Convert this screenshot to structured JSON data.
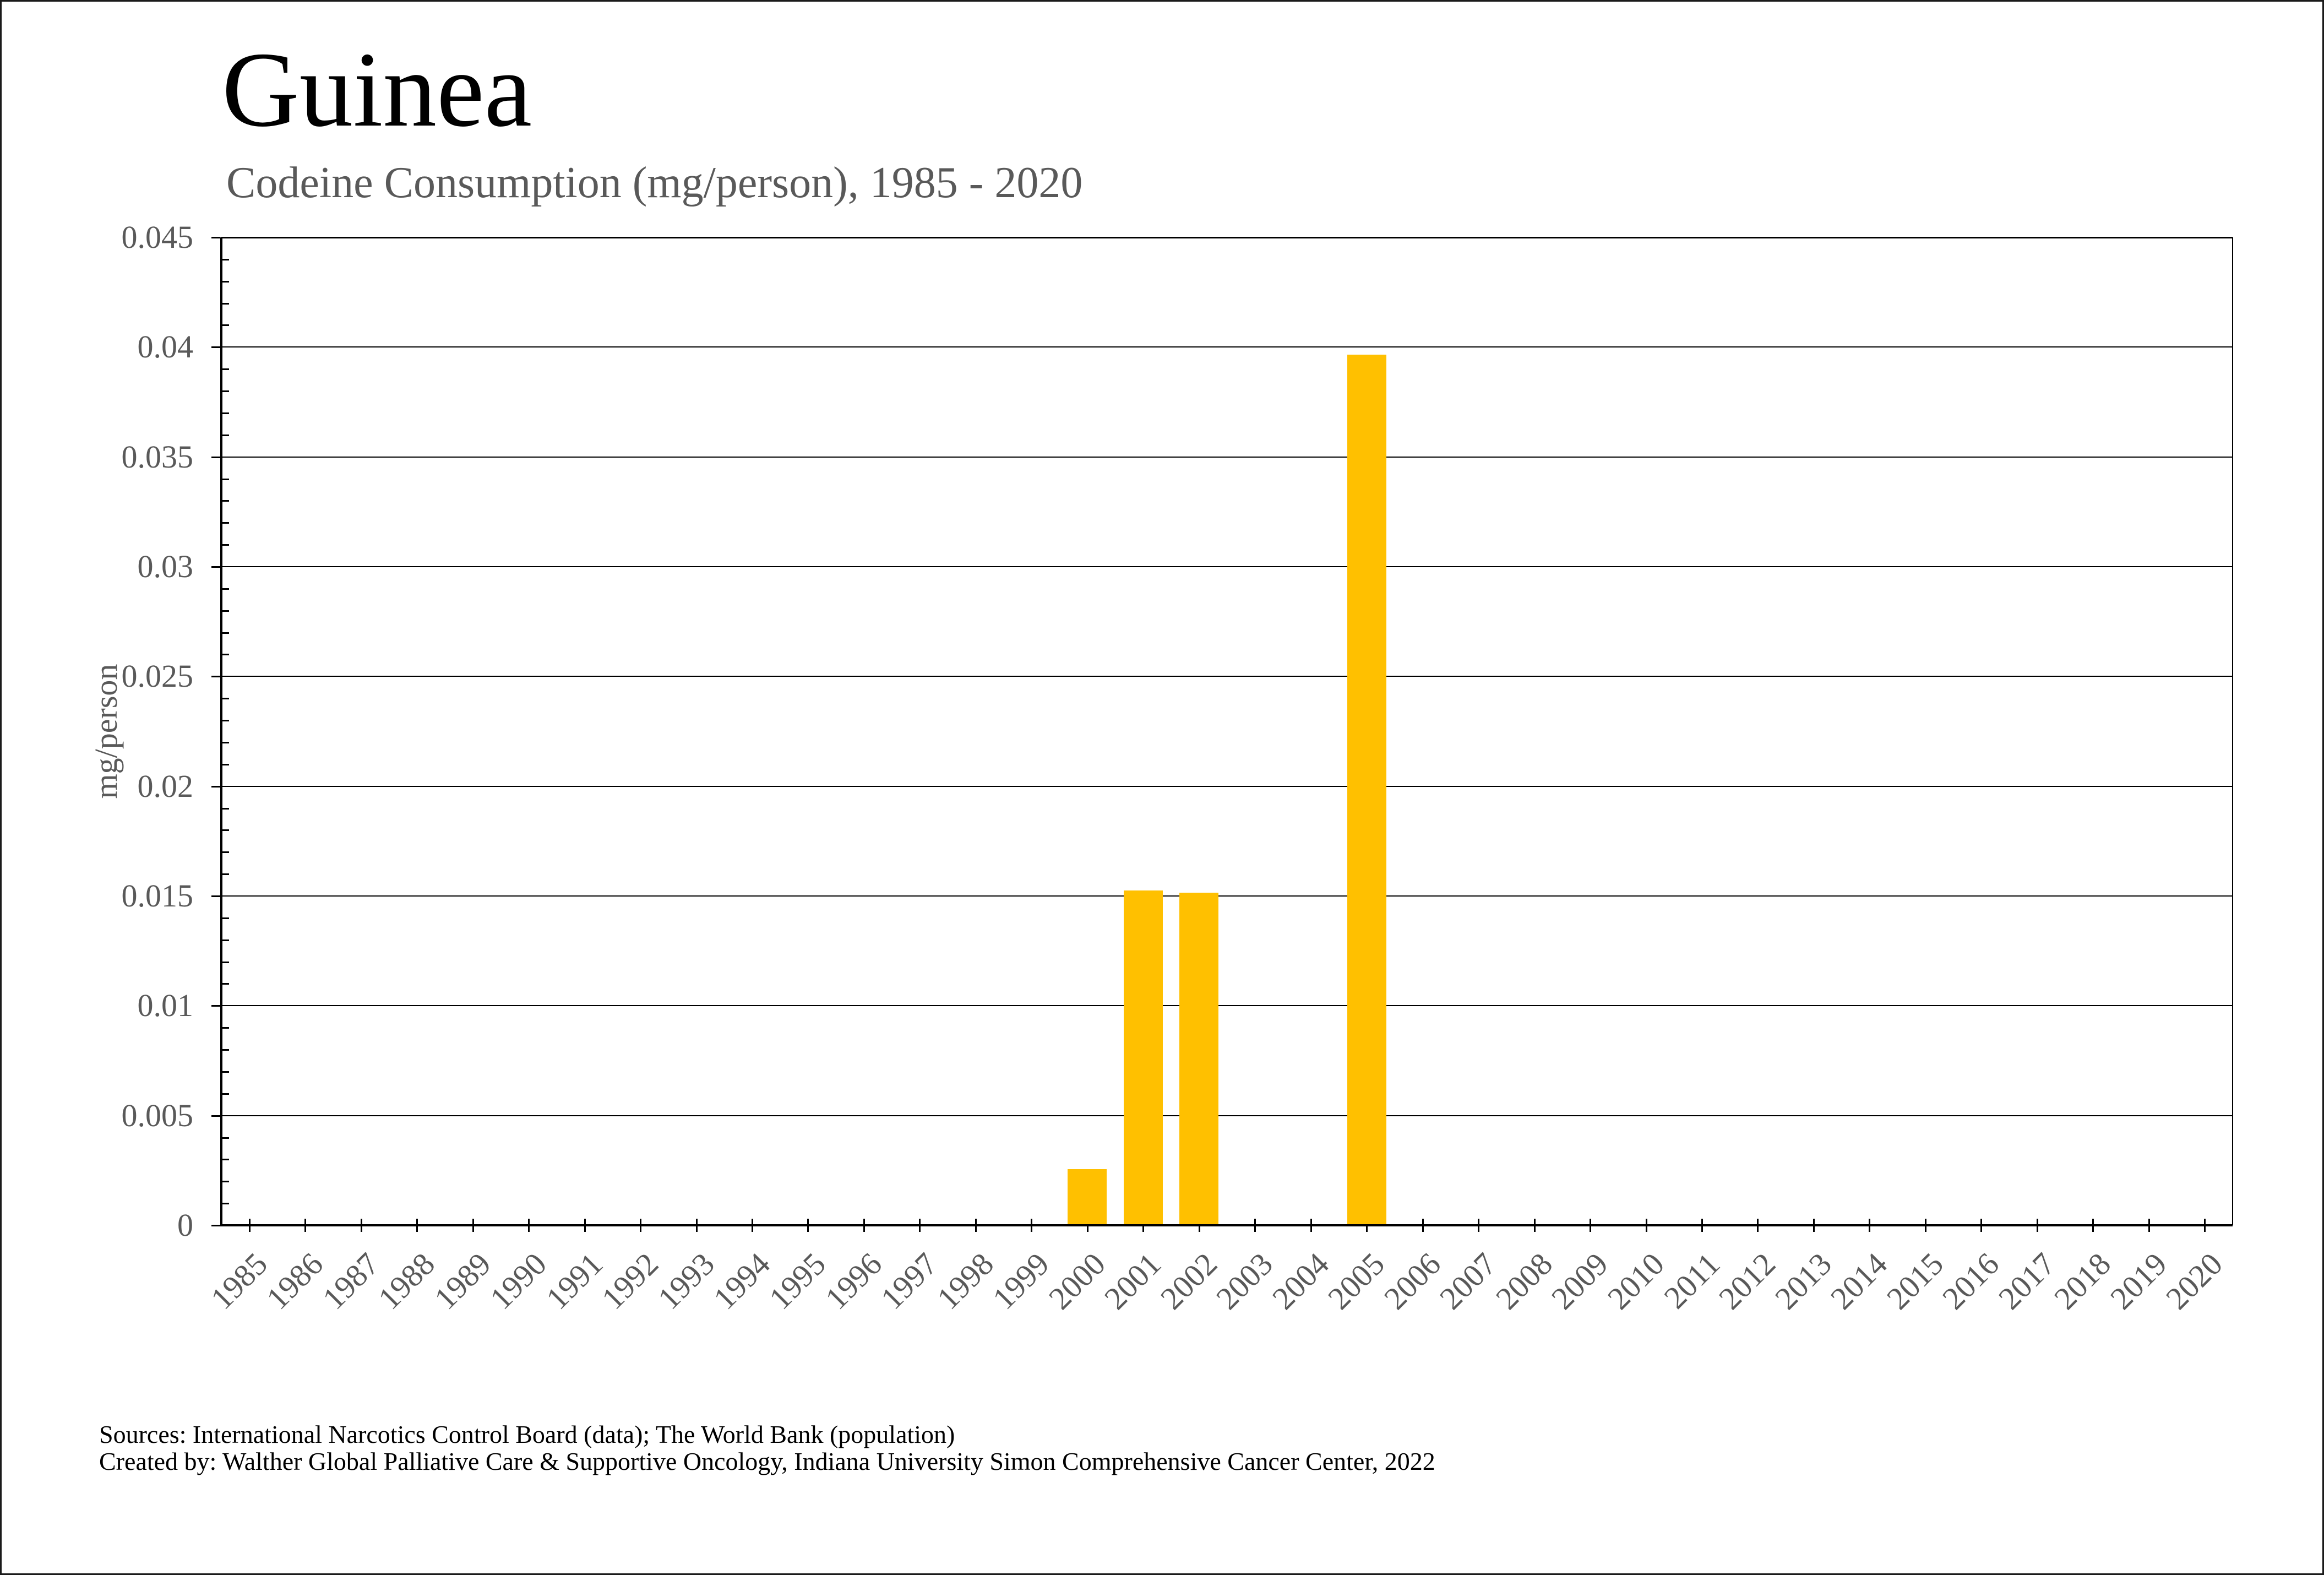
{
  "page": {
    "background": "#ffffff",
    "border_color": "#1a1a1a"
  },
  "header": {
    "title": "Guinea",
    "subtitle": "Codeine Consumption (mg/person), 1985 - 2020"
  },
  "footer": {
    "source_line1": "Sources: International Narcotics Control Board (data); The World Bank (population)",
    "source_line2": "Created by: Walther Global Palliative Care & Supportive Oncology, Indiana University Simon Comprehensive Cancer Center, 2022"
  },
  "chart_data": {
    "type": "bar",
    "title": "Guinea",
    "subtitle": "Codeine Consumption (mg/person), 1985 - 2020",
    "xlabel": "",
    "ylabel": "mg/person",
    "categories": [
      1985,
      1986,
      1987,
      1988,
      1989,
      1990,
      1991,
      1992,
      1993,
      1994,
      1995,
      1996,
      1997,
      1998,
      1999,
      2000,
      2001,
      2002,
      2003,
      2004,
      2005,
      2006,
      2007,
      2008,
      2009,
      2010,
      2011,
      2012,
      2013,
      2014,
      2015,
      2016,
      2017,
      2018,
      2019,
      2020
    ],
    "values": [
      0,
      0,
      0,
      0,
      0,
      0,
      0,
      0,
      0,
      0,
      0,
      0,
      0,
      0,
      0,
      0.0025,
      0.0152,
      0.0151,
      0,
      0,
      0.0396,
      0,
      0,
      0,
      0,
      0,
      0,
      0,
      0,
      0,
      0,
      0,
      0,
      0,
      0,
      0
    ],
    "ylim": [
      0,
      0.045
    ],
    "ytick_values": [
      0,
      0.005,
      0.01,
      0.015,
      0.02,
      0.025,
      0.03,
      0.035,
      0.04,
      0.045
    ],
    "ytick_labels": [
      "0",
      "0.005",
      "0.01",
      "0.015",
      "0.02",
      "0.025",
      "0.03",
      "0.035",
      "0.04",
      "0.045"
    ],
    "y_minor_step": 0.001,
    "grid": true,
    "legend": false,
    "bar_color": "#FFC000",
    "axis_color": "#000000",
    "label_color": "#595959"
  }
}
